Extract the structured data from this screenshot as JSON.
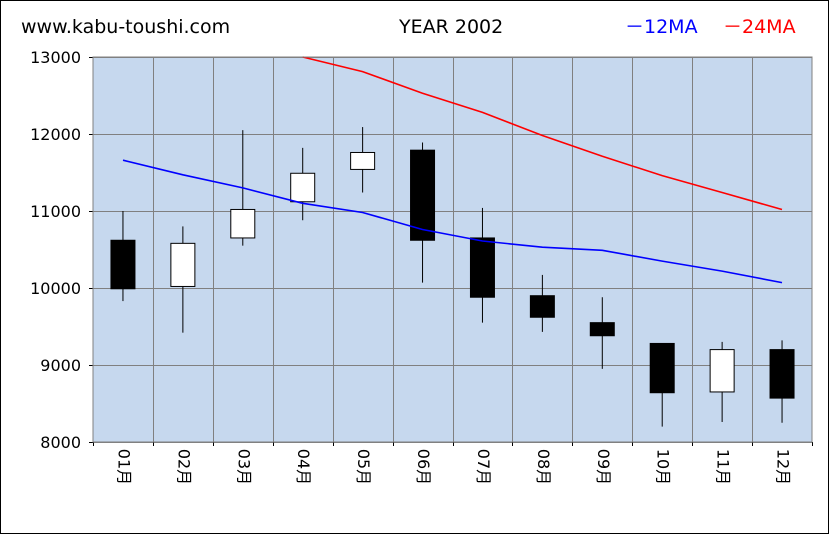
{
  "header": {
    "site": "www.kabu-toushi.com",
    "title": "YEAR 2002"
  },
  "legend": [
    {
      "label": "－12MA",
      "color": "#0000ff"
    },
    {
      "label": "－24MA",
      "color": "#ff0000"
    }
  ],
  "colors": {
    "plot_background": "#c6d8ee",
    "grid": "#808080",
    "up_candle": "#ffffff",
    "down_candle": "#000000",
    "ma12": "#0000ff",
    "ma24": "#ff0000"
  },
  "chart_data": {
    "type": "candlestick",
    "title": "YEAR 2002",
    "ylim": [
      8000,
      13000
    ],
    "yticks": [
      "8000",
      "9000",
      "10000",
      "11000",
      "12000",
      "13000"
    ],
    "grid": true,
    "legend_position": "top-right",
    "categories": [
      "01月",
      "02月",
      "03月",
      "04月",
      "05月",
      "06月",
      "07月",
      "08月",
      "09月",
      "10月",
      "11月",
      "12月"
    ],
    "ohlc": [
      {
        "open": 10620,
        "high": 11000,
        "low": 9830,
        "close": 9990
      },
      {
        "open": 10020,
        "high": 10800,
        "low": 9420,
        "close": 10580
      },
      {
        "open": 10650,
        "high": 12050,
        "low": 10550,
        "close": 11020
      },
      {
        "open": 11120,
        "high": 11820,
        "low": 10880,
        "close": 11490
      },
      {
        "open": 11540,
        "high": 12090,
        "low": 11240,
        "close": 11760
      },
      {
        "open": 11790,
        "high": 11890,
        "low": 10070,
        "close": 10620
      },
      {
        "open": 10650,
        "high": 11040,
        "low": 9550,
        "close": 9880
      },
      {
        "open": 9900,
        "high": 10170,
        "low": 9430,
        "close": 9620
      },
      {
        "open": 9550,
        "high": 9880,
        "low": 8950,
        "close": 9380
      },
      {
        "open": 9280,
        "high": 9280,
        "low": 8200,
        "close": 8640
      },
      {
        "open": 8650,
        "high": 9300,
        "low": 8260,
        "close": 9200
      },
      {
        "open": 9200,
        "high": 9320,
        "low": 8250,
        "close": 8570
      }
    ],
    "series": [
      {
        "name": "12MA",
        "values": [
          11660,
          11470,
          11300,
          11100,
          10980,
          10760,
          10610,
          10530,
          10490,
          10350,
          10220,
          10070
        ]
      },
      {
        "name": "24MA",
        "values": [
          null,
          null,
          null,
          13000,
          12810,
          12530,
          12280,
          11980,
          11710,
          11460,
          11240,
          11020
        ]
      }
    ]
  }
}
